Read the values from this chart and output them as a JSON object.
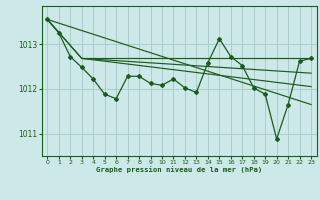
{
  "title": "Graphe pression niveau de la mer (hPa)",
  "background_color": "#cce8e8",
  "grid_color": "#aacccc",
  "line_color": "#1a5c1a",
  "xlim": [
    -0.5,
    23.5
  ],
  "ylim": [
    1010.5,
    1013.85
  ],
  "yticks": [
    1011,
    1012,
    1013
  ],
  "xticks": [
    0,
    1,
    2,
    3,
    4,
    5,
    6,
    7,
    8,
    9,
    10,
    11,
    12,
    13,
    14,
    15,
    16,
    17,
    18,
    19,
    20,
    21,
    22,
    23
  ],
  "series1_x": [
    0,
    1,
    2,
    3,
    4,
    5,
    6,
    7,
    8,
    9,
    10,
    11,
    12,
    13,
    14,
    15,
    16,
    17,
    18,
    19,
    20,
    21,
    22,
    23
  ],
  "series1_y": [
    1013.55,
    1013.25,
    1012.72,
    1012.48,
    1012.22,
    1011.88,
    1011.78,
    1012.28,
    1012.28,
    1012.12,
    1012.08,
    1012.22,
    1012.02,
    1011.92,
    1012.58,
    1013.12,
    1012.72,
    1012.52,
    1012.02,
    1011.88,
    1010.88,
    1011.65,
    1012.62,
    1012.68
  ],
  "flat_line_x": [
    3,
    23
  ],
  "flat_line_y": [
    1012.68,
    1012.68
  ],
  "diag_line_x": [
    0,
    23
  ],
  "diag_line_y": [
    1013.55,
    1011.65
  ],
  "line2_x": [
    0,
    3,
    23
  ],
  "line2_y": [
    1013.55,
    1012.68,
    1012.05
  ],
  "line3_x": [
    0,
    3,
    23
  ],
  "line3_y": [
    1013.55,
    1012.68,
    1012.35
  ]
}
